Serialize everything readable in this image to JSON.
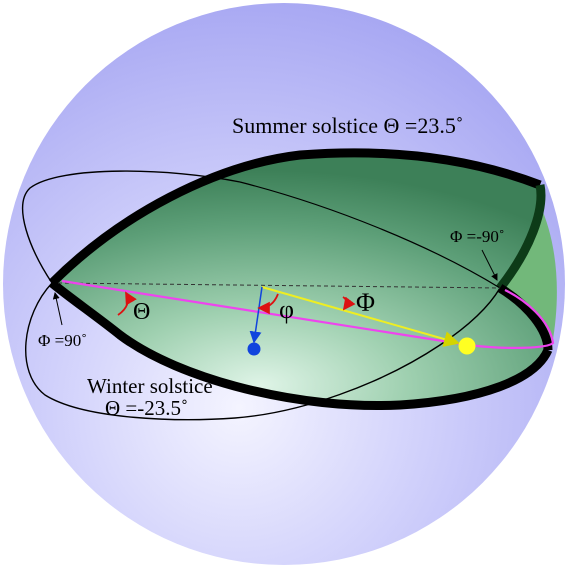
{
  "labels": {
    "summer": "Summer solstice Θ =23.5˚",
    "winter_line1": "Winter solstice",
    "winter_line2": "Θ =-23.5˚",
    "phi_minus90": "Φ =-90˚",
    "phi_90": "Φ =90˚",
    "theta": "Θ",
    "small_phi": "φ",
    "big_phi": "Φ"
  },
  "colors": {
    "sphere_light": "#eeeeff",
    "sphere_dark": "#a9a9f4",
    "disc_light": "#d8f0e0",
    "disc_dark": "#3f8a60",
    "rim": "#000000",
    "far_lobe": "#72b87a",
    "ecliptic": "#ee44ee",
    "sun_vector": "#ffff22",
    "earth_vector": "#1144dd",
    "angle_arc": "#dd1111"
  }
}
